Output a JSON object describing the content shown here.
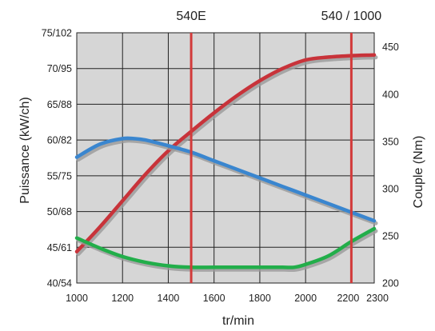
{
  "chart_data": {
    "type": "line",
    "xlabel": "tr/min",
    "ylabel_left": "Puissance (kW/ch)",
    "ylabel_right": "Couple (Nm)",
    "xlim": [
      1000,
      2300
    ],
    "x_ticks": [
      1000,
      1200,
      1400,
      1600,
      1800,
      2000,
      2200,
      2300
    ],
    "y_left_ticks": [
      {
        "value": 40,
        "label": "40/54"
      },
      {
        "value": 45,
        "label": "45/61"
      },
      {
        "value": 50,
        "label": "50/68"
      },
      {
        "value": 55,
        "label": "55/75"
      },
      {
        "value": 60,
        "label": "60/82"
      },
      {
        "value": 65,
        "label": "65/88"
      },
      {
        "value": 70,
        "label": "70/95"
      },
      {
        "value": 75,
        "label": "75/102"
      }
    ],
    "ylim_left": [
      40,
      75
    ],
    "y_right_ticks": [
      200,
      250,
      300,
      350,
      400,
      450
    ],
    "ylim_right": [
      200,
      465
    ],
    "grid": true,
    "markers": [
      {
        "label": "540E",
        "x": 1500,
        "color": "#d23a3a"
      },
      {
        "label": "540 / 1000",
        "x": 2200,
        "color": "#d23a3a"
      }
    ],
    "series": [
      {
        "axis": "left",
        "color": "#c8333a",
        "x": [
          1000,
          1100,
          1200,
          1300,
          1400,
          1500,
          1600,
          1700,
          1800,
          1900,
          2000,
          2100,
          2200,
          2300
        ],
        "y": [
          44.4,
          47.8,
          51.5,
          55.2,
          58.5,
          61.2,
          63.8,
          66.2,
          68.3,
          70.0,
          71.2,
          71.6,
          71.8,
          71.9
        ]
      },
      {
        "axis": "left",
        "color": "#3a86cf",
        "x": [
          1000,
          1100,
          1200,
          1250,
          1300,
          1400,
          1500,
          1600,
          1700,
          1800,
          1900,
          2000,
          2100,
          2200,
          2300
        ],
        "y": [
          57.6,
          59.4,
          60.2,
          60.2,
          60.0,
          59.2,
          58.3,
          57.1,
          55.9,
          54.7,
          53.5,
          52.3,
          51.1,
          49.9,
          48.7
        ]
      },
      {
        "axis": "left",
        "color": "#22ae4a",
        "x": [
          1000,
          1100,
          1200,
          1300,
          1400,
          1500,
          1600,
          1700,
          1800,
          1900,
          1950,
          2000,
          2100,
          2200,
          2300
        ],
        "y": [
          46.3,
          44.9,
          43.7,
          42.9,
          42.4,
          42.2,
          42.2,
          42.2,
          42.2,
          42.2,
          42.2,
          42.6,
          43.8,
          45.8,
          47.6
        ]
      }
    ]
  }
}
